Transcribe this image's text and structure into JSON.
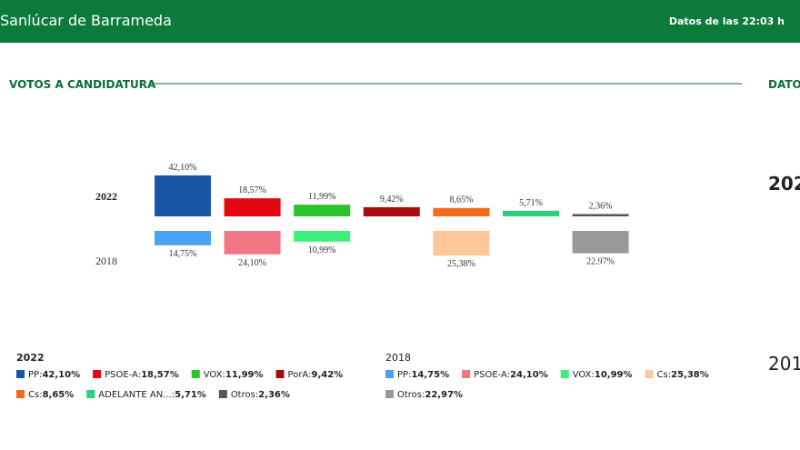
{
  "header": {
    "title": "Sanlúcar de Barrameda",
    "timestamp": "Datos de las 22:03 h"
  },
  "section_title": "VOTOS A CANDIDATURA",
  "side_panel": {
    "title": "DATO",
    "labels": [
      "202",
      "201"
    ]
  },
  "chart_data": {
    "type": "bar",
    "categories": [
      "PP",
      "PSOE-A",
      "VOX",
      "PorA",
      "Cs",
      "ADELANTE AN...",
      "Otros"
    ],
    "legend_separator": ":",
    "series": [
      {
        "name": "2022",
        "colors": [
          "#1a56a8",
          "#e30613",
          "#2cc22c",
          "#a80c0c",
          "#f26b1d",
          "#2ccf7d",
          "#555555"
        ],
        "values": [
          42.1,
          18.57,
          11.99,
          9.42,
          8.65,
          5.71,
          2.36
        ],
        "value_labels": [
          "42,10%",
          "18,57%",
          "11,99%",
          "9,42%",
          "8,65%",
          "5,71%",
          "2,36%"
        ],
        "legend_value_labels": [
          "42,10%",
          "18,57%",
          "11,99%",
          "9,42%",
          "8,65%",
          "5,71%",
          "2,36%"
        ]
      },
      {
        "name": "2018",
        "colors": [
          "#4aa3f0",
          "#f27684",
          "#3cef7a",
          null,
          "#fdc79a",
          null,
          "#999999"
        ],
        "values": [
          14.75,
          24.1,
          10.99,
          null,
          25.38,
          null,
          22.97
        ],
        "value_labels": [
          "14,75%",
          "24,10%",
          "10,99%",
          null,
          "25,38%",
          null,
          "22.97%"
        ],
        "legend_value_labels": [
          "14,75%",
          "24,10%",
          "10,99%",
          null,
          "25,38%",
          null,
          "22,97%"
        ]
      }
    ]
  }
}
